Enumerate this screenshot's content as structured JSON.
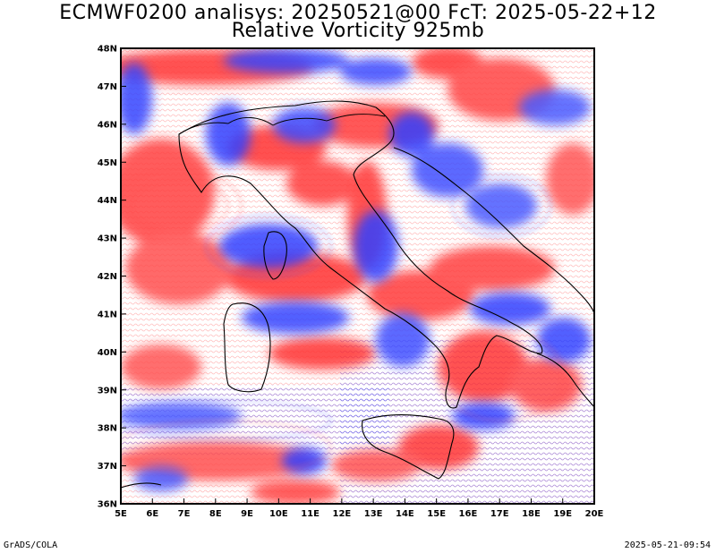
{
  "header": {
    "title_line1": "ECMWF0200 analisys: 20250521@00 FcT: 2025-05-22+12",
    "title_line2": "Relative Vorticity 925mb"
  },
  "map": {
    "lat_labels": [
      "48N",
      "47N",
      "46N",
      "45N",
      "44N",
      "43N",
      "42N",
      "41N",
      "40N",
      "39N",
      "38N",
      "37N",
      "36N"
    ],
    "lon_labels": [
      "5E",
      "6E",
      "7E",
      "8E",
      "9E",
      "10E",
      "11E",
      "12E",
      "13E",
      "14E",
      "15E",
      "16E",
      "17E",
      "18E",
      "19E",
      "20E"
    ],
    "colors": {
      "positive_vorticity": "#ff3b3b",
      "negative_vorticity": "#3b4bff",
      "coastline": "#000000",
      "background": "#ffffff"
    }
  },
  "footer": {
    "left": "GrADS/COLA",
    "right": "2025-05-21-09:54"
  }
}
